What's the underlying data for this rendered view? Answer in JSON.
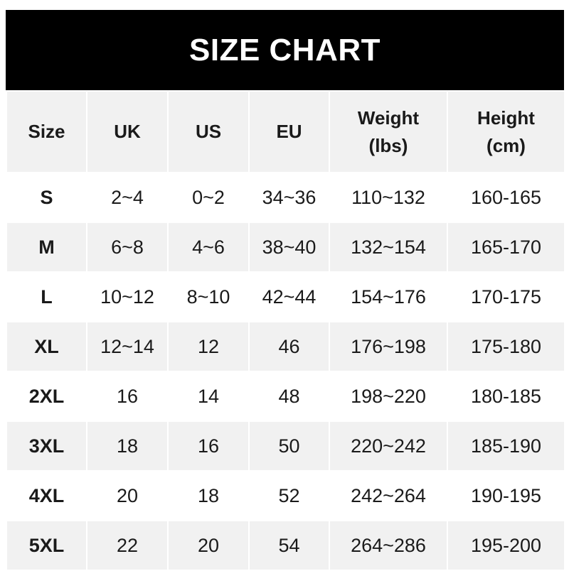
{
  "title": "SIZE CHART",
  "headers": [
    "Size",
    "UK",
    "US",
    "EU",
    "Weight\n(lbs)",
    "Height\n(cm)"
  ],
  "rows": [
    [
      "S",
      "2~4",
      "0~2",
      "34~36",
      "110~132",
      "160-165"
    ],
    [
      "M",
      "6~8",
      "4~6",
      "38~40",
      "132~154",
      "165-170"
    ],
    [
      "L",
      "10~12",
      "8~10",
      "42~44",
      "154~176",
      "170-175"
    ],
    [
      "XL",
      "12~14",
      "12",
      "46",
      "176~198",
      "175-180"
    ],
    [
      "2XL",
      "16",
      "14",
      "48",
      "198~220",
      "180-185"
    ],
    [
      "3XL",
      "18",
      "16",
      "50",
      "220~242",
      "185-190"
    ],
    [
      "4XL",
      "20",
      "18",
      "52",
      "242~264",
      "190-195"
    ],
    [
      "5XL",
      "22",
      "20",
      "54",
      "264~286",
      "195-200"
    ]
  ],
  "colors": {
    "title_bg": "#000000",
    "header_bg": "#f1f1f1",
    "alt_row_bg": "#f1f1f1"
  }
}
